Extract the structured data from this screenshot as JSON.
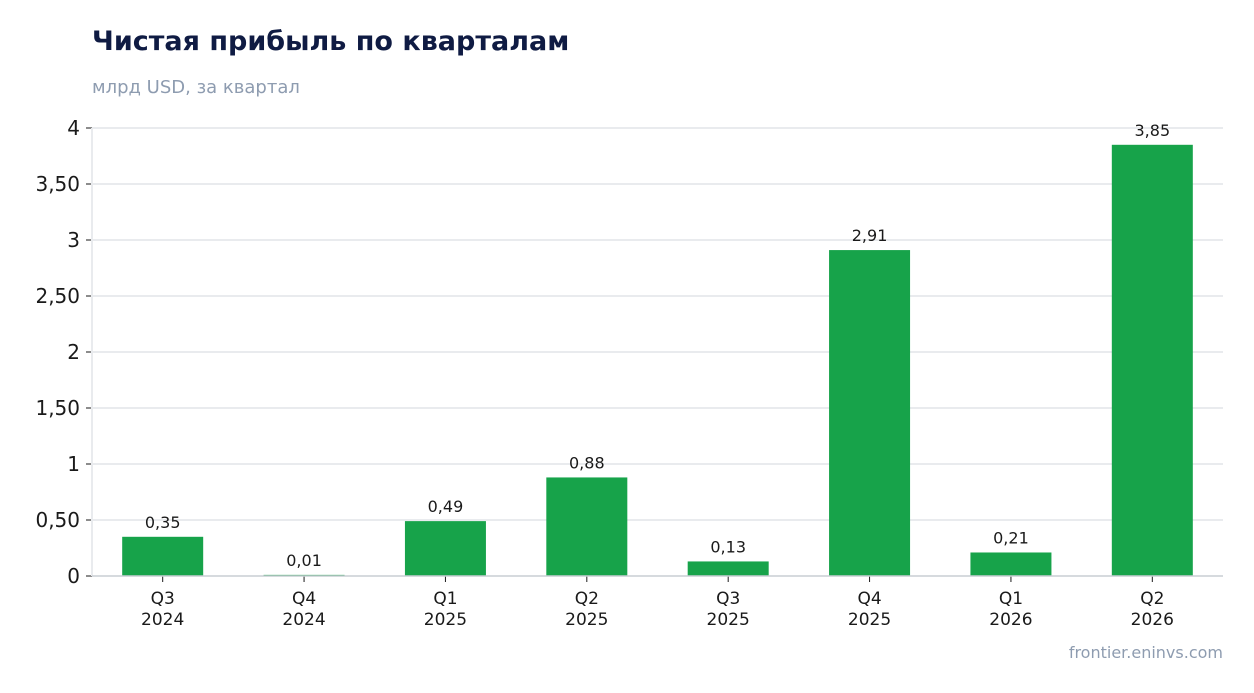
{
  "header": {
    "title": "Чистая прибыль по кварталам",
    "subtitle": "млрд USD, за квартал"
  },
  "footer": {
    "source": "frontier.eninvs.com"
  },
  "colors": {
    "bar": "#17a34a",
    "grid": "#e9ebee",
    "axis": "#c9cdd3",
    "text": "#1a1a1a",
    "title": "#0f1b43",
    "muted": "#8e9cb0"
  },
  "chart_data": {
    "type": "bar",
    "title": "Чистая прибыль по кварталам",
    "subtitle": "млрд USD, за квартал",
    "categories": [
      [
        "Q3",
        "2024"
      ],
      [
        "Q4",
        "2024"
      ],
      [
        "Q1",
        "2025"
      ],
      [
        "Q2",
        "2025"
      ],
      [
        "Q3",
        "2025"
      ],
      [
        "Q4",
        "2025"
      ],
      [
        "Q1",
        "2026"
      ],
      [
        "Q2",
        "2026"
      ]
    ],
    "values": [
      0.35,
      0.01,
      0.49,
      0.88,
      0.13,
      2.91,
      0.21,
      3.85
    ],
    "value_labels": [
      "0,35",
      "0,01",
      "0,49",
      "0,88",
      "0,13",
      "2,91",
      "0,21",
      "3,85"
    ],
    "y_ticks": [
      0,
      0.5,
      1,
      1.5,
      2,
      2.5,
      3,
      3.5,
      4
    ],
    "y_tick_labels": [
      "0",
      "0,50",
      "1",
      "1,50",
      "2",
      "2,50",
      "3",
      "3,50",
      "4"
    ],
    "ylim": [
      0,
      4
    ],
    "grid": true,
    "legend": false
  }
}
